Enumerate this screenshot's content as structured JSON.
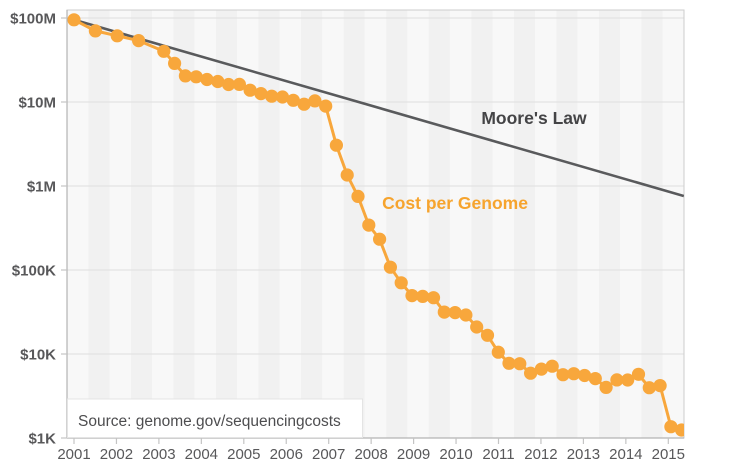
{
  "chart_data": {
    "type": "line",
    "title": "",
    "x_axis": {
      "label": "",
      "tick_years": [
        2001,
        2002,
        2003,
        2004,
        2005,
        2006,
        2007,
        2008,
        2009,
        2010,
        2011,
        2012,
        2013,
        2014,
        2015
      ],
      "range_start": 2001,
      "range_end": 2015.9
    },
    "y_axis": {
      "label": "",
      "scale": "log",
      "ticks": [
        {
          "label": "$100M",
          "value": 100000000
        },
        {
          "label": "$10M",
          "value": 10000000
        },
        {
          "label": "$1M",
          "value": 1000000
        },
        {
          "label": "$100K",
          "value": 100000
        },
        {
          "label": "$10K",
          "value": 10000
        },
        {
          "label": "$1K",
          "value": 1000
        }
      ],
      "ylim": [
        1000,
        100000000
      ]
    },
    "grid": "horizontal-only",
    "background_stripes": {
      "period_years": 0.5,
      "colors": [
        "#f8f8f8",
        "#f1f1f1"
      ]
    },
    "series": [
      {
        "name": "Cost per Genome",
        "color": "#f8a73c",
        "marker": "circle",
        "points": [
          {
            "date": "Sep-01",
            "t": 2001.708,
            "cost": 95263072
          },
          {
            "date": "Mar-02",
            "t": 2002.205,
            "cost": 70175437
          },
          {
            "date": "Sep-02",
            "t": 2002.708,
            "cost": 61448422
          },
          {
            "date": "Mar-03",
            "t": 2003.205,
            "cost": 53751684
          },
          {
            "date": "Oct-03",
            "t": 2003.79,
            "cost": 40157554
          },
          {
            "date": "Jan-04",
            "t": 2004.04,
            "cost": 28780376
          },
          {
            "date": "Apr-04",
            "t": 2004.29,
            "cost": 20442576
          },
          {
            "date": "Jul-04",
            "t": 2004.54,
            "cost": 19934346
          },
          {
            "date": "Oct-04",
            "t": 2004.79,
            "cost": 18519312
          },
          {
            "date": "Jan-05",
            "t": 2005.04,
            "cost": 17534970
          },
          {
            "date": "Apr-05",
            "t": 2005.29,
            "cost": 16159699
          },
          {
            "date": "Jul-05",
            "t": 2005.54,
            "cost": 16180224
          },
          {
            "date": "Oct-05",
            "t": 2005.79,
            "cost": 13801124
          },
          {
            "date": "Jan-06",
            "t": 2006.04,
            "cost": 12585659
          },
          {
            "date": "Apr-06",
            "t": 2006.29,
            "cost": 11732535
          },
          {
            "date": "Jul-06",
            "t": 2006.54,
            "cost": 11455315
          },
          {
            "date": "Oct-06",
            "t": 2006.79,
            "cost": 10474556
          },
          {
            "date": "Jan-07",
            "t": 2007.04,
            "cost": 9408739
          },
          {
            "date": "Apr-07",
            "t": 2007.29,
            "cost": 10314926
          },
          {
            "date": "Jul-07",
            "t": 2007.54,
            "cost": 8927342
          },
          {
            "date": "Oct-07",
            "t": 2007.79,
            "cost": 3063820
          },
          {
            "date": "Jan-08",
            "t": 2008.04,
            "cost": 1352982
          },
          {
            "date": "Apr-08",
            "t": 2008.29,
            "cost": 752080
          },
          {
            "date": "Jul-08",
            "t": 2008.54,
            "cost": 342502
          },
          {
            "date": "Oct-08",
            "t": 2008.79,
            "cost": 232735
          },
          {
            "date": "Jan-09",
            "t": 2009.04,
            "cost": 108065
          },
          {
            "date": "Apr-09",
            "t": 2009.29,
            "cost": 70333
          },
          {
            "date": "Jul-09",
            "t": 2009.54,
            "cost": 49507
          },
          {
            "date": "Oct-09",
            "t": 2009.79,
            "cost": 48481
          },
          {
            "date": "Jan-10",
            "t": 2010.04,
            "cost": 46774
          },
          {
            "date": "Apr-10",
            "t": 2010.29,
            "cost": 31512
          },
          {
            "date": "Jul-10",
            "t": 2010.54,
            "cost": 31125
          },
          {
            "date": "Oct-10",
            "t": 2010.79,
            "cost": 29092
          },
          {
            "date": "Jan-11",
            "t": 2011.04,
            "cost": 20963
          },
          {
            "date": "Apr-11",
            "t": 2011.29,
            "cost": 16712
          },
          {
            "date": "Jul-11",
            "t": 2011.54,
            "cost": 10497
          },
          {
            "date": "Oct-11",
            "t": 2011.79,
            "cost": 7743
          },
          {
            "date": "Jan-12",
            "t": 2012.04,
            "cost": 7666
          },
          {
            "date": "Apr-12",
            "t": 2012.29,
            "cost": 5901
          },
          {
            "date": "Jul-12",
            "t": 2012.54,
            "cost": 6618
          },
          {
            "date": "Oct-12",
            "t": 2012.79,
            "cost": 7151
          },
          {
            "date": "Jan-13",
            "t": 2013.04,
            "cost": 5671
          },
          {
            "date": "Apr-13",
            "t": 2013.29,
            "cost": 5826
          },
          {
            "date": "Jul-13",
            "t": 2013.54,
            "cost": 5550
          },
          {
            "date": "Oct-13",
            "t": 2013.79,
            "cost": 5096
          },
          {
            "date": "Jan-14",
            "t": 2014.04,
            "cost": 4008
          },
          {
            "date": "Apr-14",
            "t": 2014.29,
            "cost": 4920
          },
          {
            "date": "Jul-14",
            "t": 2014.54,
            "cost": 4905
          },
          {
            "date": "Oct-14",
            "t": 2014.79,
            "cost": 5731
          },
          {
            "date": "Jan-15",
            "t": 2015.04,
            "cost": 3970
          },
          {
            "date": "Apr-15",
            "t": 2015.29,
            "cost": 4211
          },
          {
            "date": "Jul-15",
            "t": 2015.54,
            "cost": 1363
          },
          {
            "date": "Oct-15",
            "t": 2015.79,
            "cost": 1245
          }
        ]
      },
      {
        "name": "Moore's Law",
        "color": "#595a5c",
        "marker": "none",
        "line_start": {
          "t": 2001.708,
          "cost": 95263072
        },
        "line_end": {
          "t": 2015.84,
          "cost": 760000
        }
      }
    ],
    "annotations": {
      "moore": {
        "text": "Moore's Law"
      },
      "series": {
        "text": "Cost per Genome"
      }
    },
    "source": {
      "text": "Source: genome.gov/sequencingcosts"
    }
  }
}
